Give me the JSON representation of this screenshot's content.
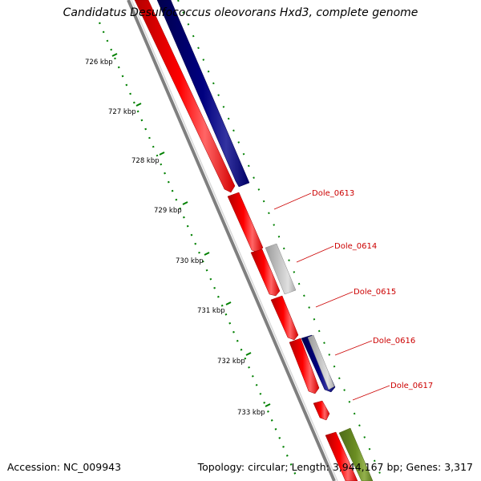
{
  "title": "Candidatus Desulfococcus oleovorans Hxd3, complete genome",
  "accession": "Accession: NC_009943",
  "summary": "Topology: circular; Length: 3,944,167 bp; Genes: 3,317",
  "colors": {
    "forward_cds": "#ff0000",
    "reverse_cds": "#000080",
    "other_gene": "#bfbfbf",
    "rna": "#6b8e23",
    "backbone": "#7f7f7f",
    "ticks": "#008000",
    "labels": "#cc0000"
  },
  "scale_labels": [
    {
      "text": "726 kbp",
      "kbp": 726
    },
    {
      "text": "727 kbp",
      "kbp": 727
    },
    {
      "text": "728 kbp",
      "kbp": 728
    },
    {
      "text": "729 kbp",
      "kbp": 729
    },
    {
      "text": "730 kbp",
      "kbp": 730
    },
    {
      "text": "731 kbp",
      "kbp": 731
    },
    {
      "text": "732 kbp",
      "kbp": 732
    },
    {
      "text": "733 kbp",
      "kbp": 733
    }
  ],
  "gene_labels": [
    {
      "text": "Dole_0613"
    },
    {
      "text": "Dole_0614"
    },
    {
      "text": "Dole_0615"
    },
    {
      "text": "Dole_0616"
    },
    {
      "text": "Dole_0617"
    }
  ]
}
